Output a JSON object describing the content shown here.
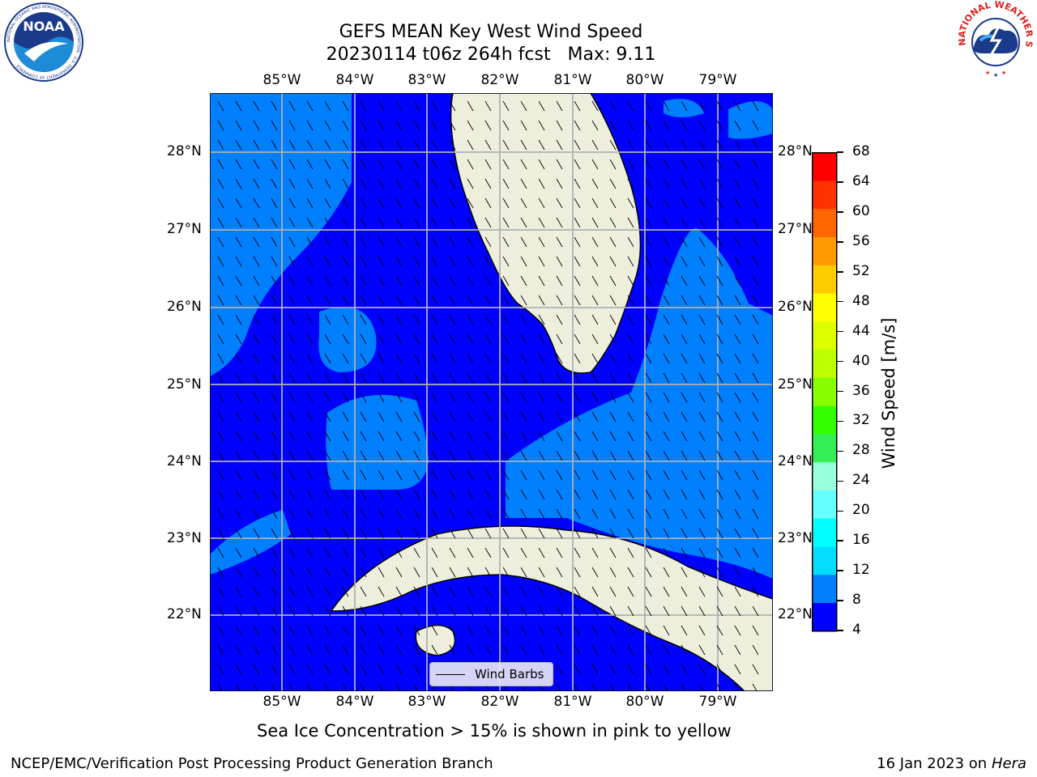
{
  "title": {
    "line1": "GEFS MEAN Key West Wind Speed",
    "line2": "20230114 t06z 264h fcst   Max: 9.11"
  },
  "logos": {
    "noaa_text": "NOAA",
    "noaa_ring_text": "NATIONAL OCEANIC AND ATMOSPHERIC ADMINISTRATION · U.S. DEPARTMENT OF COMMERCE",
    "nws_ring_text": "NATIONAL WEATHER SERVICE"
  },
  "map": {
    "lon_labels": [
      "85°W",
      "84°W",
      "83°W",
      "82°W",
      "81°W",
      "80°W",
      "79°W"
    ],
    "lat_labels": [
      "28°N",
      "27°N",
      "26°N",
      "25°N",
      "24°N",
      "23°N",
      "22°N"
    ],
    "legend_label": "Wind Barbs",
    "colors": {
      "band_4_8": "#0000ff",
      "band_8_12": "#0080ff",
      "land": "#eeeedd",
      "grid": "#b0b0b0"
    }
  },
  "colorbar": {
    "label": "Wind Speed [m/s]",
    "ticks": [
      "68",
      "64",
      "60",
      "56",
      "52",
      "48",
      "44",
      "40",
      "36",
      "32",
      "28",
      "24",
      "20",
      "16",
      "12",
      "8",
      "4"
    ],
    "colors": [
      "#ff0000",
      "#ff3300",
      "#ff6600",
      "#ff9900",
      "#ffcc00",
      "#ffff00",
      "#ddff00",
      "#bbff00",
      "#88ff00",
      "#33ff00",
      "#33ee55",
      "#99ffdd",
      "#66ffff",
      "#00ffff",
      "#00ddff",
      "#0080ff",
      "#0000ff"
    ]
  },
  "caption": "Sea Ice Concentration > 15% is shown in pink to yellow",
  "footer": {
    "left": "NCEP/EMC/Verification Post Processing Product Generation Branch",
    "date": "16 Jan 2023 on",
    "host": "Hera"
  }
}
